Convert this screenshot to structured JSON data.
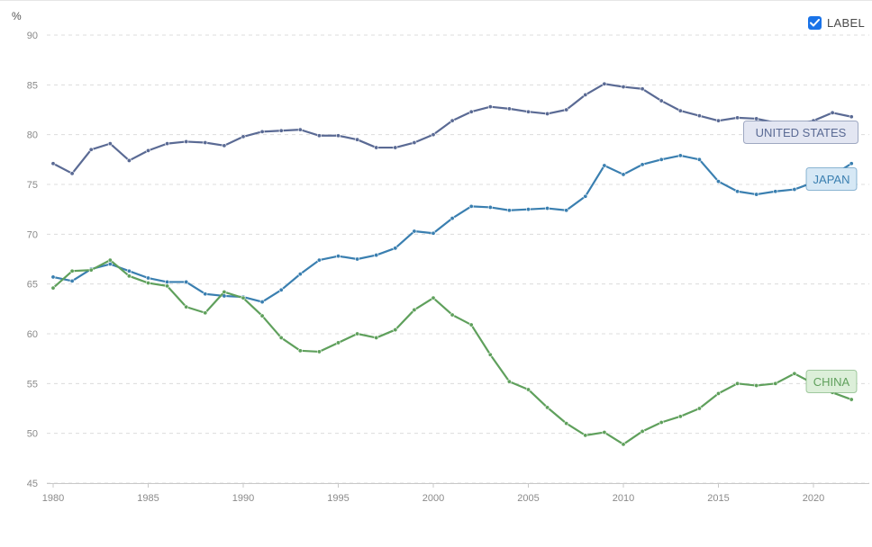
{
  "label_toggle": {
    "text": "LABEL",
    "checked": true,
    "icon": "checkmark-icon"
  },
  "chart_data": {
    "type": "line",
    "unit": "%",
    "xlim": [
      1980,
      2022
    ],
    "ylim": [
      45,
      90
    ],
    "yticks": [
      45,
      50,
      55,
      60,
      65,
      70,
      75,
      80,
      85,
      90
    ],
    "xticks": [
      1980,
      1985,
      1990,
      1995,
      2000,
      2005,
      2010,
      2015,
      2020
    ],
    "grid": true,
    "x": [
      1980,
      1981,
      1982,
      1983,
      1984,
      1985,
      1986,
      1987,
      1988,
      1989,
      1990,
      1991,
      1992,
      1993,
      1994,
      1995,
      1996,
      1997,
      1998,
      1999,
      2000,
      2001,
      2002,
      2003,
      2004,
      2005,
      2006,
      2007,
      2008,
      2009,
      2010,
      2011,
      2012,
      2013,
      2014,
      2015,
      2016,
      2017,
      2018,
      2019,
      2020,
      2021,
      2022
    ],
    "series": [
      {
        "name": "UNITED STATES",
        "color": "#5a6a94",
        "label_bg": "#e3e6f2",
        "values": [
          77.1,
          76.1,
          78.5,
          79.1,
          77.4,
          78.4,
          79.1,
          79.3,
          79.2,
          78.9,
          79.8,
          80.3,
          80.4,
          80.5,
          79.9,
          79.9,
          79.5,
          78.7,
          78.7,
          79.2,
          80.0,
          81.4,
          82.3,
          82.8,
          82.6,
          82.3,
          82.1,
          82.5,
          84.0,
          85.1,
          84.8,
          84.6,
          83.4,
          82.4,
          81.9,
          81.4,
          81.7,
          81.6,
          81.2,
          81.0,
          81.4,
          82.2,
          81.8
        ]
      },
      {
        "name": "JAPAN",
        "color": "#3a7fb0",
        "label_bg": "#d6e8f5",
        "values": [
          65.7,
          65.3,
          66.5,
          67.0,
          66.3,
          65.6,
          65.2,
          65.2,
          64.0,
          63.8,
          63.7,
          63.2,
          64.4,
          66.0,
          67.4,
          67.8,
          67.5,
          67.9,
          68.6,
          70.3,
          70.1,
          71.6,
          72.8,
          72.7,
          72.4,
          72.5,
          72.6,
          72.4,
          73.8,
          76.9,
          76.0,
          77.0,
          77.5,
          77.9,
          77.5,
          75.3,
          74.3,
          74.0,
          74.3,
          74.5,
          75.2,
          75.9,
          77.1
        ]
      },
      {
        "name": "CHINA",
        "color": "#5fa05c",
        "label_bg": "#dcefd9",
        "values": [
          64.6,
          66.3,
          66.4,
          67.4,
          65.8,
          65.1,
          64.8,
          62.7,
          62.1,
          64.2,
          63.6,
          61.8,
          59.6,
          58.3,
          58.2,
          59.1,
          60.0,
          59.6,
          60.4,
          62.4,
          63.6,
          61.9,
          60.9,
          57.9,
          55.2,
          54.4,
          52.6,
          51.0,
          49.8,
          50.1,
          48.9,
          50.2,
          51.1,
          51.7,
          52.5,
          54.0,
          55.0,
          54.8,
          55.0,
          56.0,
          55.0,
          54.1,
          53.4
        ]
      }
    ]
  }
}
